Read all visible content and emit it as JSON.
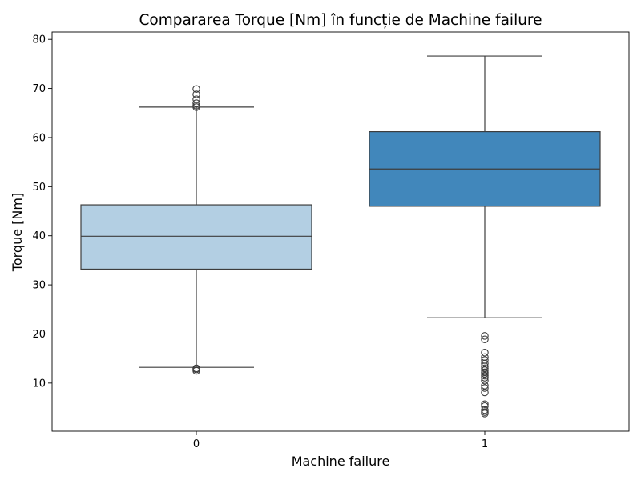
{
  "chart_data": {
    "type": "box",
    "title": "Compararea Torque [Nm] în funcție de Machine failure",
    "xlabel": "Machine failure",
    "ylabel": "Torque [Nm]",
    "categories": [
      "0",
      "1"
    ],
    "ylim": [
      0.2,
      81.5
    ],
    "yticks": [
      10,
      20,
      30,
      40,
      50,
      60,
      70,
      80
    ],
    "grid": false,
    "boxes": [
      {
        "category": "0",
        "color": "#b3cfe3",
        "whisker_low": 13.2,
        "q1": 33.2,
        "median": 39.9,
        "q3": 46.3,
        "whisker_high": 66.2,
        "outliers": [
          12.5,
          12.8,
          13.0,
          66.2,
          66.5,
          67.0,
          67.8,
          68.8,
          69.9
        ]
      },
      {
        "category": "1",
        "color": "#4187bb",
        "whisker_low": 23.3,
        "q1": 46.0,
        "median": 53.6,
        "q3": 61.2,
        "whisker_high": 76.6,
        "outliers": [
          19.6,
          18.9,
          16.2,
          15.3,
          14.7,
          14.0,
          13.4,
          13.0,
          12.6,
          12.2,
          11.9,
          11.5,
          11.1,
          10.5,
          9.5,
          9.0,
          8.1,
          5.7,
          5.3,
          4.5,
          4.1,
          3.8
        ]
      }
    ]
  }
}
